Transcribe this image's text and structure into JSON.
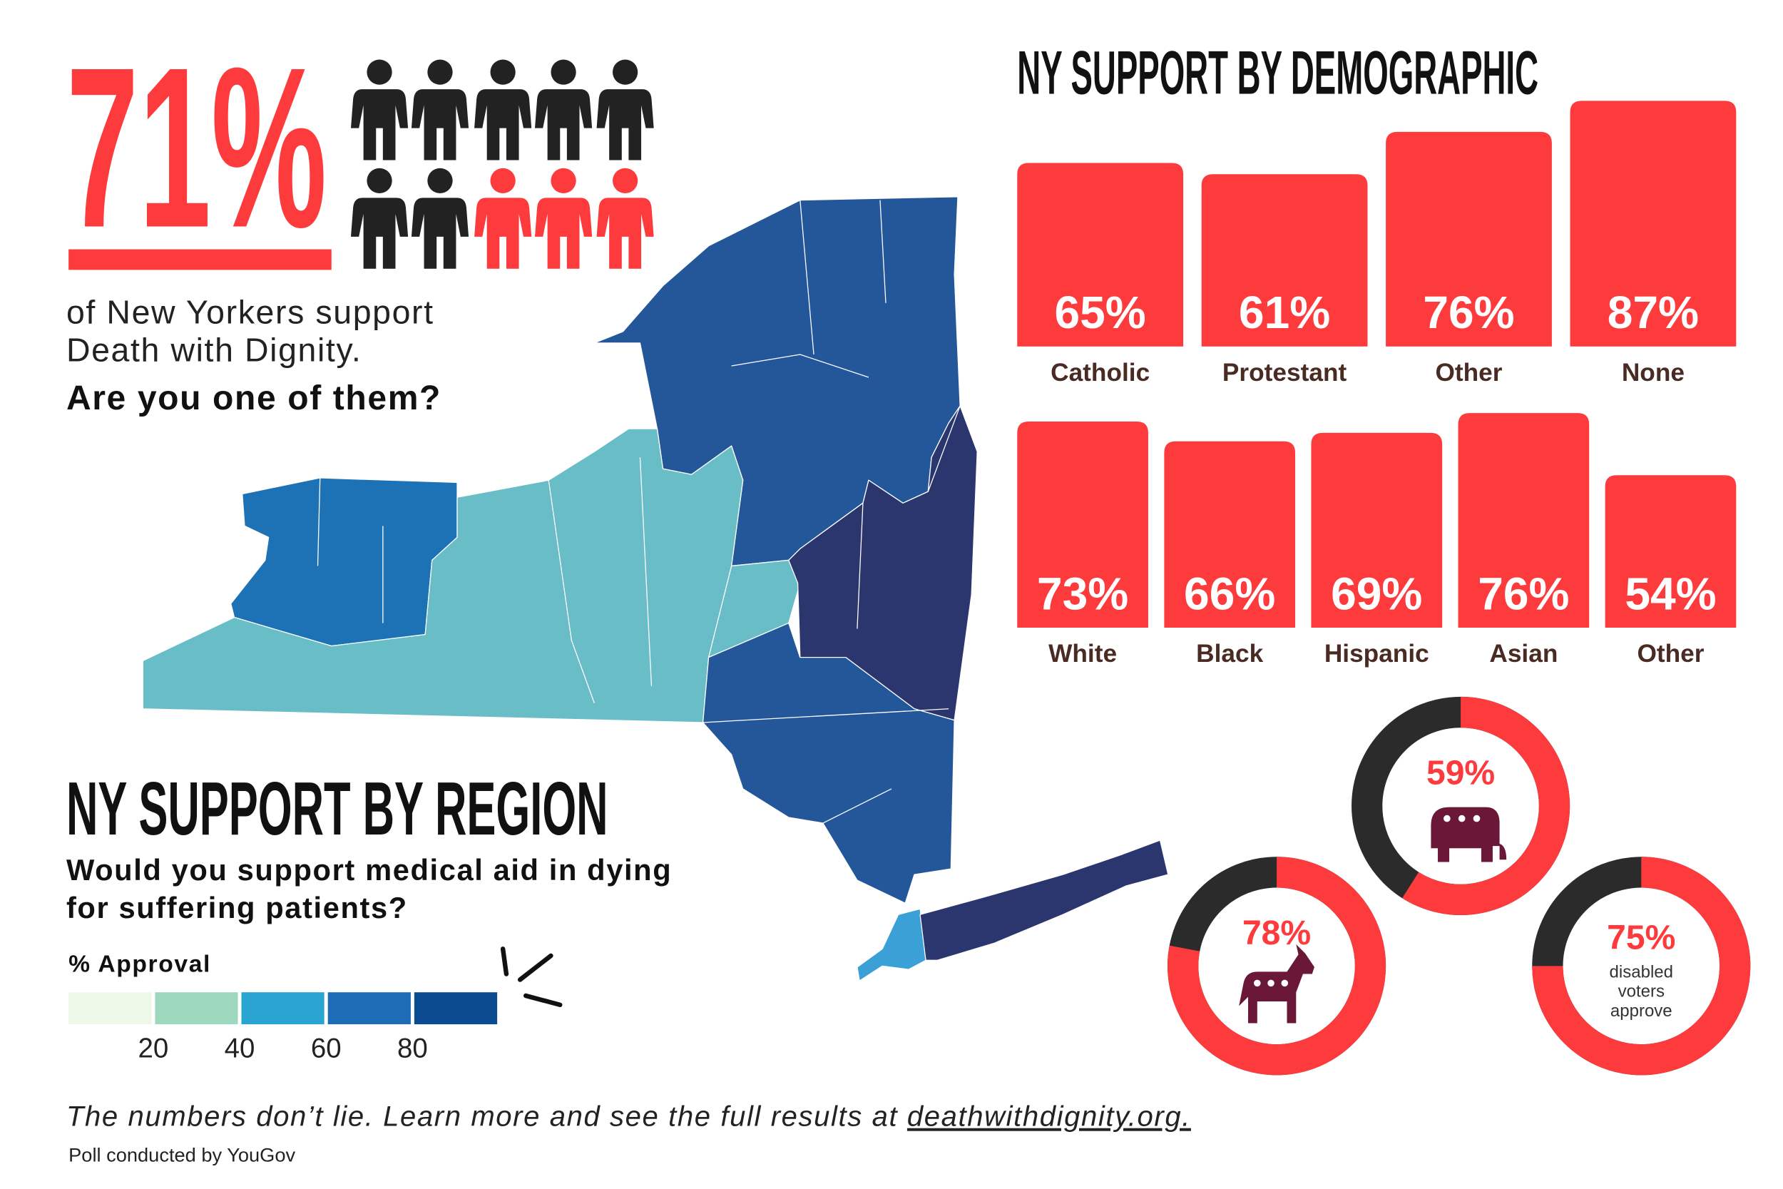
{
  "headline": {
    "stat": "71%",
    "line1": "of New Yorkers support",
    "line2": "Death with Dignity.",
    "question": "Are you one of them?"
  },
  "chart_data": [
    {
      "type": "bar",
      "title": "NY SUPPORT BY DEMOGRAPHIC",
      "categories": [
        "Catholic",
        "Protestant",
        "Other",
        "None"
      ],
      "values": [
        65,
        61,
        76,
        87
      ],
      "value_labels": [
        "65%",
        "61%",
        "76%",
        "87%"
      ],
      "color": "#fd3a3c",
      "ylim": [
        0,
        100
      ]
    },
    {
      "type": "bar",
      "categories": [
        "White",
        "Black",
        "Hispanic",
        "Asian",
        "Other"
      ],
      "values": [
        73,
        66,
        69,
        76,
        54
      ],
      "value_labels": [
        "73%",
        "66%",
        "69%",
        "76%",
        "54%"
      ],
      "color": "#fd3a3c",
      "ylim": [
        0,
        100
      ]
    },
    {
      "type": "map",
      "title": "NY SUPPORT BY REGION",
      "subtitle": [
        "Would you support medical aid in dying",
        "for suffering patients?"
      ],
      "legend": {
        "title": "% Approval",
        "colors": [
          "#eef8e8",
          "#9ed9bf",
          "#2aa5d1",
          "#1e6cb5",
          "#0a4a8f"
        ],
        "range": [
          0,
          100
        ],
        "ticks": [
          20,
          40,
          60,
          80
        ]
      }
    },
    {
      "type": "donut",
      "values": [
        59
      ],
      "value_labels": [
        "59%"
      ],
      "color": "#fd3a3c",
      "track_color": "#2b2b2b"
    },
    {
      "type": "donut",
      "values": [
        78
      ],
      "value_labels": [
        "78%"
      ],
      "color": "#fd3a3c",
      "track_color": "#2b2b2b"
    },
    {
      "type": "donut",
      "values": [
        75
      ],
      "value_labels": [
        "75%"
      ],
      "color": "#fd3a3c",
      "track_color": "#2b2b2b",
      "caption": [
        "disabled",
        "voters",
        "approve"
      ]
    }
  ],
  "footer": {
    "text": "The numbers don’t lie. Learn more and see the full results at ",
    "link": "deathwithdignity.org.",
    "credit": "Poll conducted by YouGov"
  }
}
